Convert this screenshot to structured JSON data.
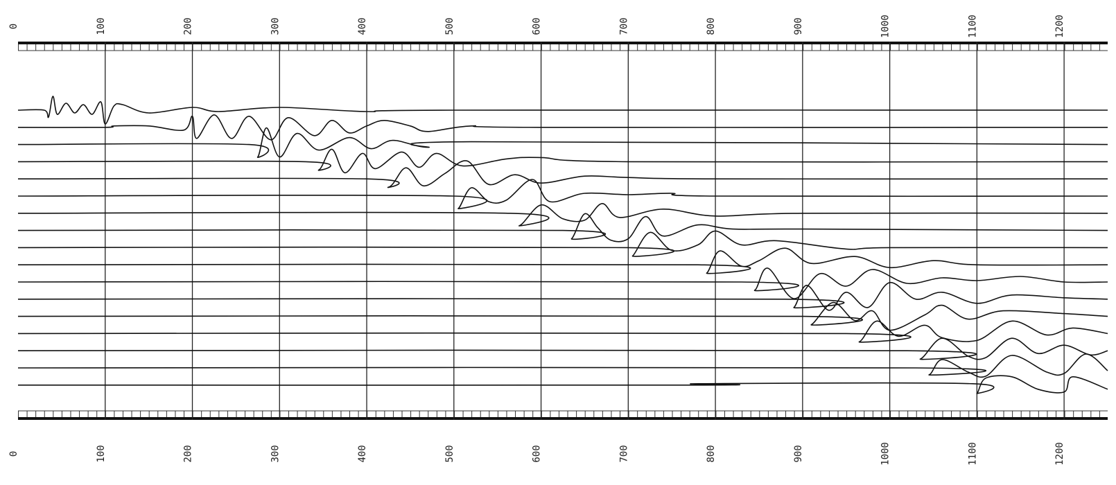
{
  "chart_data": {
    "type": "seismogram",
    "xlim": [
      0,
      1250
    ],
    "xticks": [
      0,
      100,
      200,
      300,
      400,
      500,
      600,
      700,
      800,
      900,
      1000,
      1100,
      1200
    ],
    "grid": true,
    "color": "#111111",
    "series": [
      {
        "x": [
          0,
          30,
          35,
          40,
          45,
          55,
          65,
          75,
          85,
          95,
          100,
          110,
          120,
          150,
          200,
          230,
          300,
          400,
          500,
          1250
        ],
        "values": [
          0,
          0,
          -0.5,
          1,
          -0.3,
          0.5,
          -0.2,
          0.4,
          -0.3,
          0.6,
          -1,
          0.3,
          0.4,
          -0.2,
          0.2,
          -0.1,
          0.2,
          -0.1,
          0,
          0
        ]
      },
      {
        "x": [
          0,
          100,
          110,
          150,
          190,
          200,
          205,
          225,
          245,
          265,
          290,
          310,
          340,
          360,
          380,
          400,
          420,
          450,
          470,
          520,
          600,
          1250
        ],
        "values": [
          0,
          0,
          0.1,
          0.1,
          -0.2,
          0.8,
          -0.8,
          0.9,
          -0.8,
          0.8,
          -0.9,
          0.7,
          -0.6,
          0.5,
          -0.4,
          0.1,
          0.5,
          0.1,
          -0.3,
          0.1,
          0,
          0
        ]
      },
      {
        "x": [
          0,
          265,
          275,
          285,
          300,
          320,
          345,
          380,
          405,
          430,
          470,
          520,
          1250
        ],
        "values": [
          0,
          0,
          -0.9,
          1.2,
          -0.9,
          0.8,
          -0.4,
          0.5,
          -0.3,
          0.3,
          -0.2,
          0.2,
          0
        ]
      },
      {
        "x": [
          0,
          330,
          345,
          360,
          375,
          395,
          410,
          440,
          460,
          480,
          510,
          560,
          600,
          700,
          1250
        ],
        "values": [
          0,
          0,
          -0.6,
          0.9,
          -0.8,
          0.6,
          -0.5,
          0.7,
          -0.4,
          0.6,
          -0.3,
          0.2,
          0.3,
          0,
          0
        ]
      },
      {
        "x": [
          0,
          400,
          425,
          445,
          465,
          490,
          515,
          540,
          570,
          600,
          650,
          700,
          800,
          1250
        ],
        "values": [
          0,
          0,
          -0.6,
          0.8,
          -0.5,
          0.4,
          1.3,
          -0.4,
          0.3,
          -0.3,
          0.2,
          0.1,
          0,
          0
        ]
      },
      {
        "x": [
          0,
          500,
          505,
          520,
          540,
          560,
          590,
          610,
          650,
          700,
          750,
          800,
          1250
        ],
        "values": [
          0,
          0,
          -0.9,
          0.6,
          -0.4,
          -0.3,
          1.2,
          -0.4,
          0.2,
          0.1,
          0.2,
          0,
          0
        ]
      },
      {
        "x": [
          0,
          565,
          575,
          600,
          625,
          650,
          670,
          690,
          740,
          800,
          900,
          1250
        ],
        "values": [
          0,
          0,
          -0.9,
          0.6,
          -0.4,
          -0.5,
          0.7,
          -0.3,
          0.3,
          -0.2,
          0,
          0
        ]
      },
      {
        "x": [
          0,
          625,
          635,
          650,
          665,
          680,
          700,
          720,
          740,
          780,
          820,
          900,
          1250
        ],
        "values": [
          0,
          0,
          -0.6,
          1.2,
          0.2,
          -0.7,
          -0.6,
          1,
          -0.4,
          0.4,
          0.1,
          0.1,
          0
        ]
      },
      {
        "x": [
          0,
          700,
          705,
          725,
          750,
          780,
          800,
          830,
          870,
          950,
          1000,
          1250
        ],
        "values": [
          0,
          0,
          -0.6,
          1.1,
          -0.2,
          0.2,
          1.2,
          0.2,
          0.5,
          -0.1,
          0,
          0
        ]
      },
      {
        "x": [
          0,
          780,
          790,
          805,
          830,
          850,
          880,
          910,
          960,
          1000,
          1050,
          1100,
          1250
        ],
        "values": [
          0,
          0,
          -0.6,
          1,
          -0.1,
          0.3,
          1.2,
          0.1,
          0.6,
          -0.2,
          0.3,
          0,
          0
        ]
      },
      {
        "x": [
          0,
          830,
          845,
          860,
          890,
          920,
          950,
          980,
          1020,
          1060,
          1100,
          1150,
          1200,
          1250
        ],
        "values": [
          0,
          0,
          -0.6,
          1,
          -1.2,
          0.6,
          -0.3,
          0.9,
          -0.1,
          0.3,
          0.1,
          0.4,
          0,
          0
        ]
      },
      {
        "x": [
          0,
          880,
          890,
          905,
          930,
          950,
          975,
          1000,
          1030,
          1060,
          1100,
          1140,
          1200,
          1250
        ],
        "values": [
          0,
          0,
          -0.6,
          1,
          -0.8,
          0.5,
          -0.6,
          1.2,
          0,
          0.5,
          -0.3,
          0.3,
          0.1,
          0
        ]
      },
      {
        "x": [
          0,
          900,
          910,
          935,
          960,
          980,
          1000,
          1040,
          1060,
          1090,
          1130,
          1200,
          1250
        ],
        "values": [
          0,
          0,
          -0.6,
          1,
          -0.3,
          0.4,
          -1,
          0.1,
          0.8,
          -0.2,
          0.4,
          0.2,
          0
        ]
      },
      {
        "x": [
          0,
          950,
          965,
          985,
          1010,
          1040,
          1060,
          1100,
          1140,
          1180,
          1210,
          1250
        ],
        "values": [
          0,
          0,
          -0.6,
          0.9,
          -0.2,
          0.6,
          -0.3,
          -0.5,
          0.9,
          -0.1,
          0.4,
          0
        ]
      },
      {
        "x": [
          0,
          1020,
          1035,
          1060,
          1090,
          1110,
          1140,
          1170,
          1200,
          1230,
          1250
        ],
        "values": [
          0,
          0,
          -0.6,
          0.9,
          -0.4,
          -0.5,
          0.9,
          -0.2,
          0.4,
          -0.3,
          0
        ]
      },
      {
        "x": [
          0,
          1030,
          1045,
          1060,
          1090,
          1110,
          1140,
          1180,
          1200,
          1225,
          1250
        ],
        "values": [
          0,
          0,
          -0.5,
          0.6,
          -0.3,
          -0.6,
          0.9,
          -0.3,
          -0.4,
          1,
          -0.2
        ]
      },
      {
        "x": [
          0,
          780,
          781,
          1095,
          1100,
          1110,
          1140,
          1170,
          1200,
          1210,
          1250
        ],
        "values": [
          0,
          0,
          0.1,
          0.1,
          -0.6,
          0.5,
          0.6,
          -0.3,
          -0.5,
          0.6,
          -0.3
        ]
      }
    ]
  }
}
